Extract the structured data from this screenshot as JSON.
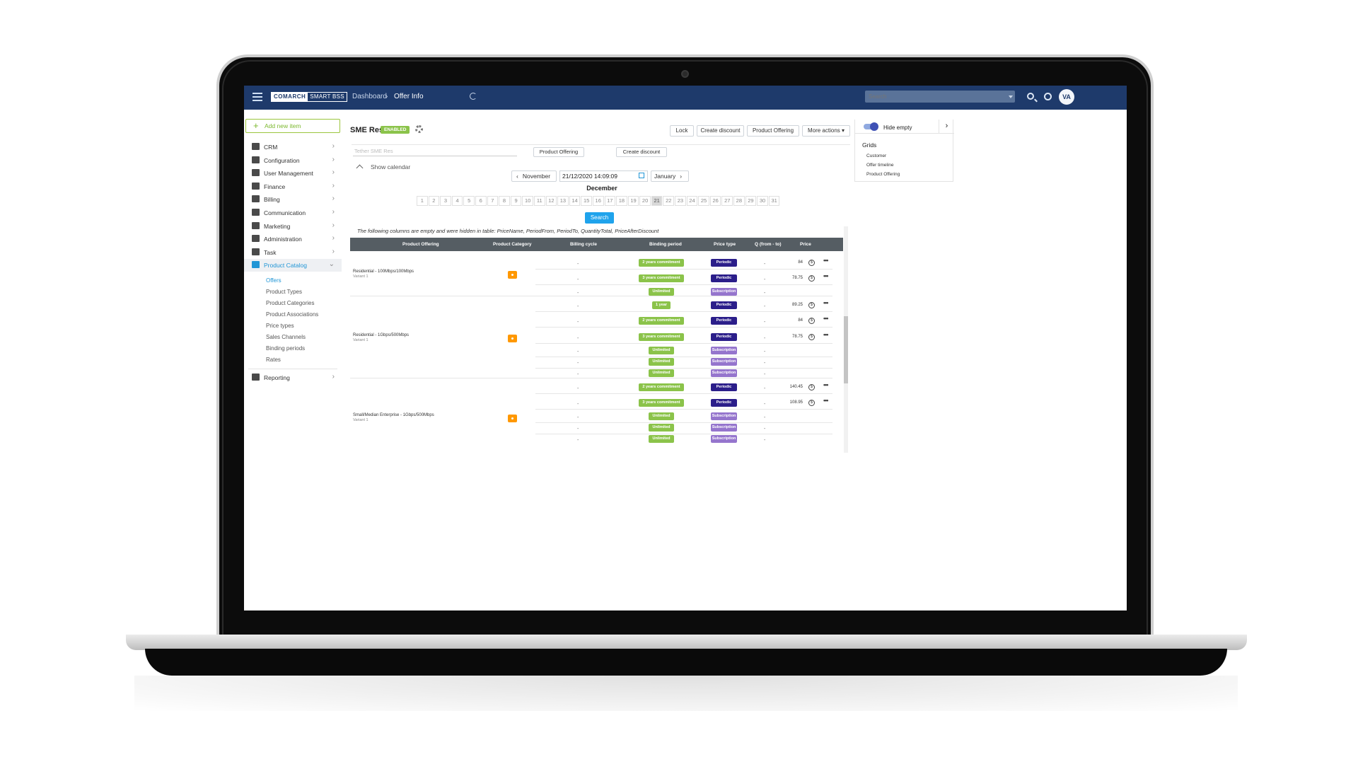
{
  "topbar": {
    "logo_primary": "COMARCH",
    "logo_secondary": "SMART BSS",
    "breadcrumb": [
      "Dashboard",
      "Offer Info"
    ],
    "search_placeholder": "Search",
    "avatar_initials": "VA",
    "colors": {
      "bar": "#1e3a6b"
    }
  },
  "sidebar": {
    "add_label": "Add new item",
    "items": [
      {
        "label": "CRM",
        "icon": "contact-card-icon"
      },
      {
        "label": "Configuration",
        "icon": "pencil-icon"
      },
      {
        "label": "User Management",
        "icon": "users-icon"
      },
      {
        "label": "Finance",
        "icon": "credit-card-icon"
      },
      {
        "label": "Billing",
        "icon": "document-icon"
      },
      {
        "label": "Communication",
        "icon": "chat-icon"
      },
      {
        "label": "Marketing",
        "icon": "megaphone-icon"
      },
      {
        "label": "Administration",
        "icon": "key-icon"
      },
      {
        "label": "Task",
        "icon": "bookmark-icon"
      },
      {
        "label": "Product Catalog",
        "icon": "catalog-icon",
        "active": true
      }
    ],
    "subitems": [
      "Offers",
      "Product Types",
      "Product Categories",
      "Product Associations",
      "Price types",
      "Sales Channels",
      "Binding periods",
      "Rates"
    ],
    "reporting_label": "Reporting"
  },
  "header": {
    "title": "SME Res",
    "status": "ENABLED",
    "buttons": [
      "Lock",
      "Create discount",
      "Product Offering",
      "More actions"
    ]
  },
  "subbar": {
    "select_value": "Tether SME Res",
    "buttons": [
      "Product Offering",
      "Create discount"
    ]
  },
  "calendar": {
    "toggle_label": "Show calendar",
    "prev_month": "November",
    "next_month": "January",
    "date_value": "21/12/2020 14:09:09",
    "month_title": "December",
    "days": [
      "1",
      "2",
      "3",
      "4",
      "5",
      "6",
      "7",
      "8",
      "9",
      "10",
      "11",
      "12",
      "13",
      "14",
      "15",
      "16",
      "17",
      "18",
      "19",
      "20",
      "21",
      "22",
      "23",
      "24",
      "25",
      "26",
      "27",
      "28",
      "29",
      "30",
      "31"
    ],
    "selected_day": "21",
    "search_label": "Search"
  },
  "hidden_note": "The following columns are empty and were hidden in table: PriceName, PeriodFrom, PeriodTo, QuantityTotal, PriceAfterDiscount",
  "table": {
    "columns": [
      "Product Offering",
      "Product Category",
      "Billing cycle",
      "Binding period",
      "Price type",
      "Q (from - to)",
      "Price"
    ],
    "groups": [
      {
        "name": "Residential - 100Mbps/100Mbps",
        "variant": "Variant 1",
        "rows": [
          {
            "cycle": "-",
            "binding": "2 years commitment",
            "ptype": "Periodic",
            "q": "-",
            "price": "84"
          },
          {
            "cycle": "-",
            "binding": "3 years commitment",
            "ptype": "Periodic",
            "q": "-",
            "price": "78.75"
          },
          {
            "cycle": "-",
            "binding": "Unlimited",
            "ptype": "Subscription",
            "q": "-",
            "price": ""
          }
        ]
      },
      {
        "name": "Residential - 1Gbps/500Mbps",
        "variant": "Variant 1",
        "rows": [
          {
            "cycle": "-",
            "binding": "1 year",
            "ptype": "Periodic",
            "q": "-",
            "price": "89.25"
          },
          {
            "cycle": "-",
            "binding": "2 years commitment",
            "ptype": "Periodic",
            "q": "-",
            "price": "84"
          },
          {
            "cycle": "-",
            "binding": "3 years commitment",
            "ptype": "Periodic",
            "q": "-",
            "price": "78.75"
          },
          {
            "cycle": "-",
            "binding": "Unlimited",
            "ptype": "Subscription",
            "q": "-",
            "price": ""
          },
          {
            "cycle": "-",
            "binding": "Unlimited",
            "ptype": "Subscription",
            "q": "-",
            "price": ""
          },
          {
            "cycle": "-",
            "binding": "Unlimited",
            "ptype": "Subscription",
            "q": "-",
            "price": ""
          }
        ]
      },
      {
        "name": "Small/Median Enterprise - 1Gbps/500Mbps",
        "variant": "Variant 1",
        "rows": [
          {
            "cycle": "-",
            "binding": "2 years commitment",
            "ptype": "Periodic",
            "q": "-",
            "price": "140.45"
          },
          {
            "cycle": "-",
            "binding": "3 years commitment",
            "ptype": "Periodic",
            "q": "-",
            "price": "108.95"
          },
          {
            "cycle": "-",
            "binding": "Unlimited",
            "ptype": "Subscription",
            "q": "-",
            "price": ""
          },
          {
            "cycle": "-",
            "binding": "Unlimited",
            "ptype": "Subscription",
            "q": "-",
            "price": ""
          },
          {
            "cycle": "-",
            "binding": "Unlimited",
            "ptype": "Subscription",
            "q": "-",
            "price": ""
          }
        ]
      }
    ]
  },
  "right_panel": {
    "toggle_label": "Hide empty",
    "grids_title": "Grids",
    "grids": [
      "Customer",
      "Offer timeline",
      "Product Offering"
    ]
  }
}
